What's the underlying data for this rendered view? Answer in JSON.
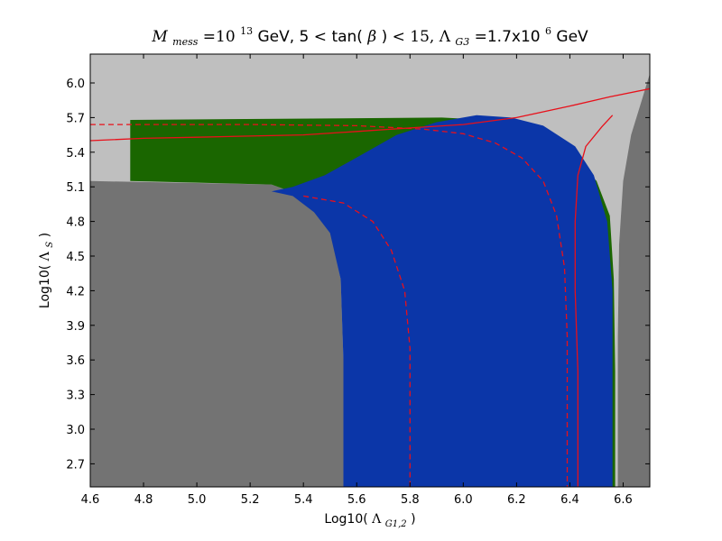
{
  "chart_data": {
    "type": "heatmap",
    "title": "M_mess=10^13 GeV, 5<tan(β)<15, Λ_G3=1.7x10^6 GeV",
    "title_parts": {
      "m": "M",
      "m_sub": "mess",
      "eq1": "=10",
      "exp13": "13",
      "gev1": " GeV, 5",
      "lt1": "<",
      "tan": "tan(",
      "beta": "β",
      "tan_close": ")",
      "lt2": "<",
      "fifteen": "15, ",
      "lambda": "Λ",
      "lambda_sub": "G3",
      "eq2": "=1.7x10",
      "exp6": "6",
      "gev2": " GeV"
    },
    "xlabel": "Log10(Λ_G1,2)",
    "xlabel_parts": {
      "prefix": "Log10(",
      "lambda": "Λ",
      "sub": "G1,2",
      "suffix": ")"
    },
    "ylabel": "Log10(Λ_S)",
    "ylabel_parts": {
      "prefix": "Log10(",
      "lambda": "Λ",
      "sub": "S",
      "suffix": ")"
    },
    "xlim": [
      4.6,
      6.7
    ],
    "ylim": [
      2.5,
      6.25
    ],
    "xticks": [
      "4.6",
      "4.8",
      "5.0",
      "5.2",
      "5.4",
      "5.6",
      "5.8",
      "6.0",
      "6.2",
      "6.4",
      "6.6"
    ],
    "yticks": [
      "2.7",
      "3.0",
      "3.3",
      "3.6",
      "3.9",
      "4.2",
      "4.5",
      "4.8",
      "5.1",
      "5.4",
      "5.7",
      "6.0"
    ],
    "grid": false,
    "colors": {
      "background": "#bfbfbf",
      "excluded": "#737373",
      "green": "#1a6600",
      "blue": "#0b36a8",
      "contour": "#e8101a"
    },
    "regions": [
      {
        "fill": "excluded",
        "points": [
          [
            4.6,
            5.15
          ],
          [
            5.28,
            5.12
          ],
          [
            5.4,
            5.02
          ],
          [
            5.5,
            4.72
          ],
          [
            5.54,
            4.3
          ],
          [
            5.55,
            3.6
          ],
          [
            5.55,
            2.5
          ],
          [
            4.6,
            2.5
          ]
        ]
      },
      {
        "fill": "excluded",
        "points": [
          [
            6.71,
            6.25
          ],
          [
            6.71,
            2.5
          ],
          [
            6.58,
            2.5
          ],
          [
            6.58,
            3.8
          ],
          [
            6.585,
            4.6
          ],
          [
            6.6,
            5.15
          ],
          [
            6.63,
            5.55
          ],
          [
            6.67,
            5.85
          ],
          [
            6.7,
            6.08
          ]
        ]
      },
      {
        "fill": "green",
        "points": [
          [
            4.75,
            5.68
          ],
          [
            5.92,
            5.7
          ],
          [
            6.1,
            5.68
          ],
          [
            6.28,
            5.55
          ],
          [
            6.42,
            5.35
          ],
          [
            6.5,
            5.15
          ],
          [
            6.55,
            4.85
          ],
          [
            6.565,
            4.3
          ],
          [
            6.57,
            3.5
          ],
          [
            6.57,
            2.5
          ],
          [
            5.55,
            2.5
          ],
          [
            5.55,
            4.3
          ],
          [
            5.5,
            4.72
          ],
          [
            5.4,
            5.02
          ],
          [
            5.28,
            5.12
          ],
          [
            4.75,
            5.15
          ]
        ]
      },
      {
        "fill": "blue",
        "points": [
          [
            5.55,
            2.5
          ],
          [
            6.56,
            2.5
          ],
          [
            6.56,
            3.5
          ],
          [
            6.56,
            4.2
          ],
          [
            6.54,
            4.8
          ],
          [
            6.49,
            5.2
          ],
          [
            6.42,
            5.45
          ],
          [
            6.3,
            5.63
          ],
          [
            6.18,
            5.7
          ],
          [
            6.05,
            5.72
          ],
          [
            5.9,
            5.66
          ],
          [
            5.75,
            5.55
          ],
          [
            5.62,
            5.38
          ],
          [
            5.48,
            5.2
          ],
          [
            5.36,
            5.1
          ],
          [
            5.28,
            5.06
          ],
          [
            5.36,
            5.02
          ],
          [
            5.44,
            4.88
          ],
          [
            5.5,
            4.7
          ],
          [
            5.54,
            4.3
          ],
          [
            5.55,
            3.6
          ]
        ]
      }
    ],
    "contours": [
      {
        "style": "solid",
        "points": [
          [
            4.6,
            5.5
          ],
          [
            4.8,
            5.52
          ],
          [
            5.0,
            5.53
          ],
          [
            5.2,
            5.54
          ],
          [
            5.4,
            5.55
          ],
          [
            5.6,
            5.58
          ],
          [
            5.8,
            5.61
          ],
          [
            6.0,
            5.64
          ],
          [
            6.2,
            5.7
          ],
          [
            6.4,
            5.8
          ],
          [
            6.55,
            5.88
          ],
          [
            6.7,
            5.95
          ]
        ]
      },
      {
        "style": "solid",
        "points": [
          [
            6.43,
            2.5
          ],
          [
            6.43,
            3.5
          ],
          [
            6.42,
            4.2
          ],
          [
            6.42,
            4.8
          ],
          [
            6.43,
            5.2
          ],
          [
            6.46,
            5.45
          ],
          [
            6.52,
            5.62
          ],
          [
            6.56,
            5.72
          ]
        ]
      },
      {
        "style": "dashed",
        "points": [
          [
            4.6,
            5.64
          ],
          [
            5.2,
            5.64
          ],
          [
            5.6,
            5.63
          ],
          [
            5.85,
            5.6
          ],
          [
            6.0,
            5.56
          ],
          [
            6.12,
            5.48
          ],
          [
            6.22,
            5.35
          ],
          [
            6.3,
            5.15
          ],
          [
            6.35,
            4.85
          ],
          [
            6.38,
            4.4
          ],
          [
            6.39,
            3.8
          ],
          [
            6.39,
            3.2
          ],
          [
            6.39,
            2.5
          ]
        ]
      },
      {
        "style": "dashed",
        "points": [
          [
            5.4,
            5.02
          ],
          [
            5.55,
            4.96
          ],
          [
            5.66,
            4.8
          ],
          [
            5.73,
            4.55
          ],
          [
            5.78,
            4.2
          ],
          [
            5.8,
            3.7
          ],
          [
            5.8,
            3.2
          ],
          [
            5.8,
            2.5
          ]
        ]
      }
    ]
  }
}
